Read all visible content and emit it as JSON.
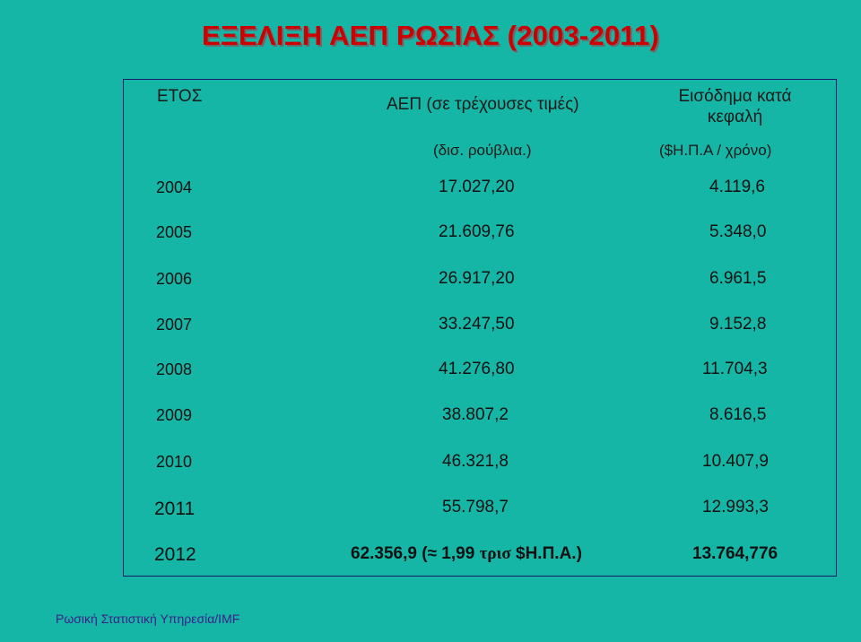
{
  "title": "ΕΞΕΛΙΞΗ ΑΕΠ ΡΩΣΙΑΣ (2003-2011)",
  "table": {
    "headers": {
      "year": "ΕΤΟΣ",
      "gdp_prefix": "ΑΕΠ",
      "gdp_rest": " (σε τρέχουσες τιμές)",
      "gdp_unit": "(δισ. ρούβλια.)",
      "income_line1": "Εισόδημα κατά",
      "income_line2": "κεφαλή",
      "income_unit": "($Η.Π.Α / χρόνο)"
    },
    "rows": [
      {
        "year": "2004",
        "gdp": "17.027,20",
        "income": "4.119,6"
      },
      {
        "year": "2005",
        "gdp": "21.609,76",
        "income": "5.348,0"
      },
      {
        "year": "2006",
        "gdp": "26.917,20",
        "income": "6.961,5"
      },
      {
        "year": "2007",
        "gdp": "33.247,50",
        "income": "9.152,8"
      },
      {
        "year": "2008",
        "gdp": "41.276,80",
        "income": "11.704,3"
      },
      {
        "year": "2009",
        "gdp": "38.807,2",
        "income": "8.616,5"
      },
      {
        "year": "2010",
        "gdp": "46.321,8",
        "income": "10.407,9"
      },
      {
        "year": "2011",
        "gdp": "55.798,7",
        "income": "12.993,3"
      }
    ],
    "last_row": {
      "year": "2012",
      "gdp_value": "62.356,9 (",
      "approx_symbol": "≈",
      "gdp_mid": " 1,99 ",
      "gdp_trillion": "τρισ",
      "gdp_currency": " $Η.Π.Α.)",
      "income": "13.764,776"
    }
  },
  "footer": "Ρωσική Στατιστική Υπηρεσία/IMF"
}
